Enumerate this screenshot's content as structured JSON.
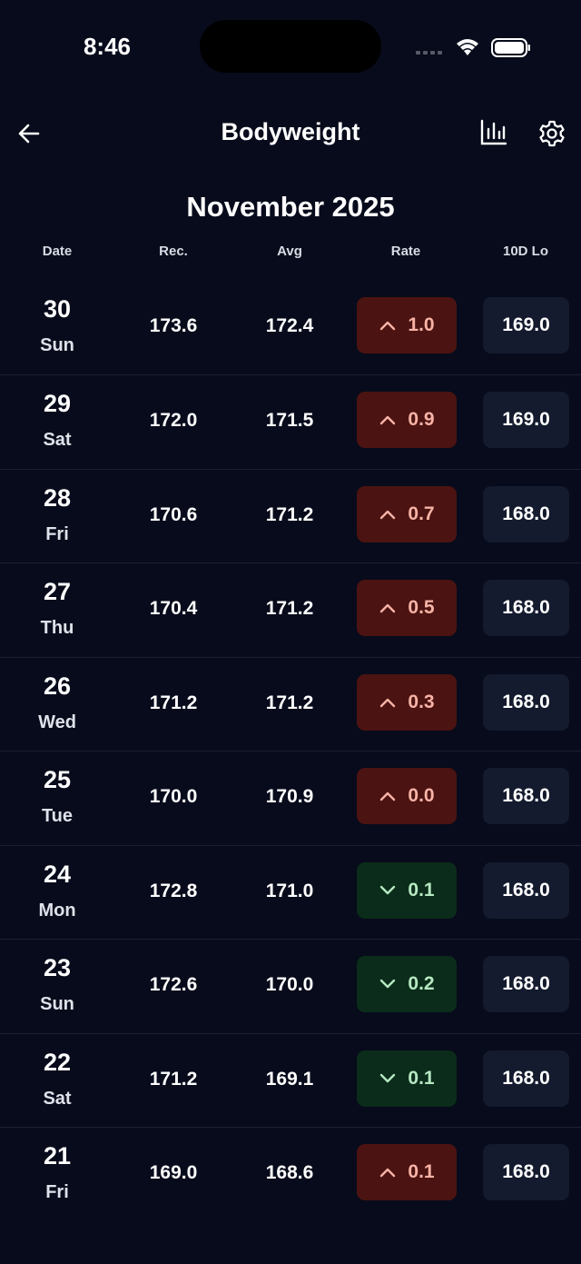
{
  "status_bar": {
    "time": "8:46"
  },
  "header": {
    "title": "Bodyweight"
  },
  "month": "November 2025",
  "table": {
    "columns": [
      "Date",
      "Rec.",
      "Avg",
      "Rate",
      "10D Lo"
    ],
    "rows": [
      {
        "day": "30",
        "weekday": "Sun",
        "rec": "173.6",
        "avg": "172.4",
        "rate": "1.0",
        "trend": "up",
        "low": "169.0"
      },
      {
        "day": "29",
        "weekday": "Sat",
        "rec": "172.0",
        "avg": "171.5",
        "rate": "0.9",
        "trend": "up",
        "low": "169.0"
      },
      {
        "day": "28",
        "weekday": "Fri",
        "rec": "170.6",
        "avg": "171.2",
        "rate": "0.7",
        "trend": "up",
        "low": "168.0"
      },
      {
        "day": "27",
        "weekday": "Thu",
        "rec": "170.4",
        "avg": "171.2",
        "rate": "0.5",
        "trend": "up",
        "low": "168.0"
      },
      {
        "day": "26",
        "weekday": "Wed",
        "rec": "171.2",
        "avg": "171.2",
        "rate": "0.3",
        "trend": "up",
        "low": "168.0"
      },
      {
        "day": "25",
        "weekday": "Tue",
        "rec": "170.0",
        "avg": "170.9",
        "rate": "0.0",
        "trend": "up",
        "low": "168.0"
      },
      {
        "day": "24",
        "weekday": "Mon",
        "rec": "172.8",
        "avg": "171.0",
        "rate": "0.1",
        "trend": "down",
        "low": "168.0"
      },
      {
        "day": "23",
        "weekday": "Sun",
        "rec": "172.6",
        "avg": "170.0",
        "rate": "0.2",
        "trend": "down",
        "low": "168.0"
      },
      {
        "day": "22",
        "weekday": "Sat",
        "rec": "171.2",
        "avg": "169.1",
        "rate": "0.1",
        "trend": "down",
        "low": "168.0"
      },
      {
        "day": "21",
        "weekday": "Fri",
        "rec": "169.0",
        "avg": "168.6",
        "rate": "0.1",
        "trend": "up",
        "low": "168.0"
      }
    ]
  }
}
